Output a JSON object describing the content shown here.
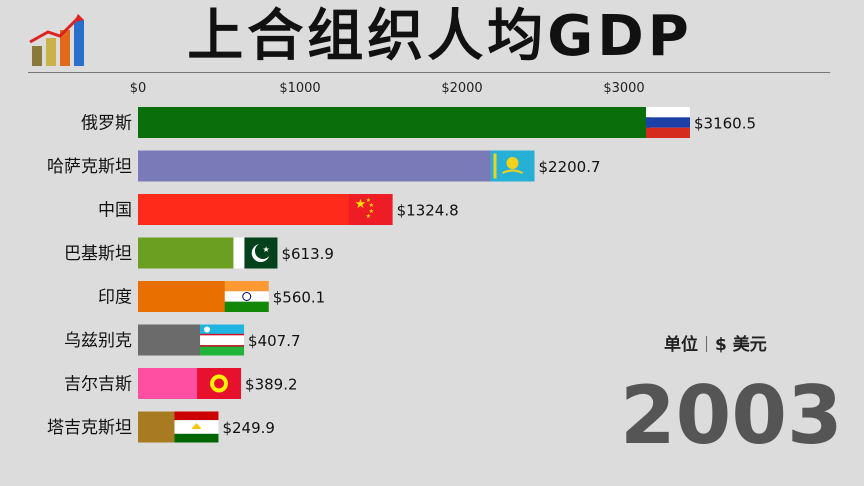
{
  "title": "上合组织人均GDP",
  "unit_label": "单位",
  "unit_value": "$ 美元",
  "year": "2003",
  "chart_data": {
    "type": "bar",
    "orientation": "horizontal",
    "title": "上合组织人均GDP",
    "x_ticks": [
      "$0",
      "$1000",
      "$2000",
      "$3000"
    ],
    "x_tick_values": [
      0,
      1000,
      2000,
      3000
    ],
    "categories": [
      "俄罗斯",
      "哈萨克斯坦",
      "中国",
      "巴基斯坦",
      "印度",
      "乌兹别克",
      "吉尔吉斯",
      "塔吉克斯坦"
    ],
    "values": [
      3160.5,
      2200.7,
      1324.8,
      613.9,
      560.1,
      407.7,
      389.2,
      249.9
    ],
    "value_labels": [
      "$3160.5",
      "$2200.7",
      "$1324.8",
      "$613.9",
      "$560.1",
      "$407.7",
      "$389.2",
      "$249.9"
    ],
    "colors": [
      "#0a6e0a",
      "#7a7ab8",
      "#ff2a1a",
      "#6a9f22",
      "#e86f00",
      "#6b6b6b",
      "#ff4fa3",
      "#a87a22"
    ],
    "flags": [
      "russia-flag",
      "kazakhstan-flag",
      "china-flag",
      "pakistan-flag",
      "india-flag",
      "uzbekistan-flag",
      "kyrgyzstan-flag",
      "tajikistan-flag"
    ],
    "grid": false
  }
}
